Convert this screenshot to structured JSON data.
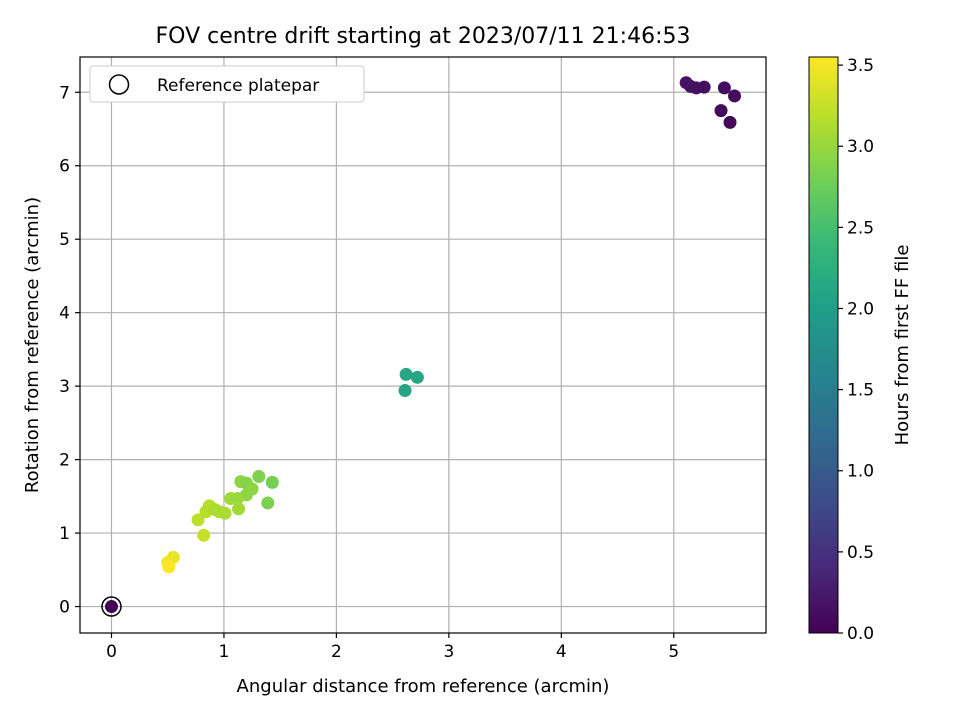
{
  "chart_data": {
    "type": "scatter",
    "title": "FOV centre drift starting at 2023/07/11 21:46:53",
    "xlabel": "Angular distance from reference (arcmin)",
    "ylabel": "Rotation from reference (arcmin)",
    "xlim": [
      -0.28,
      5.82
    ],
    "ylim": [
      -0.36,
      7.48
    ],
    "x_ticks": [
      0,
      1,
      2,
      3,
      4,
      5
    ],
    "y_ticks": [
      0,
      1,
      2,
      3,
      4,
      5,
      6,
      7
    ],
    "grid": true,
    "legend": {
      "placement": "upper-left",
      "entries": [
        {
          "label": "Reference platepar",
          "marker": "hollow-circle"
        }
      ]
    },
    "reference_point": {
      "x": 0,
      "y": 0
    },
    "colorbar": {
      "label": "Hours from first FF file",
      "colormap": "viridis",
      "range": [
        0.0,
        3.55
      ],
      "ticks": [
        0.0,
        0.5,
        1.0,
        1.5,
        2.0,
        2.5,
        3.0,
        3.5
      ]
    },
    "points": [
      {
        "x": 0.0,
        "y": 0.0,
        "c": 0.0
      },
      {
        "x": 5.11,
        "y": 7.13,
        "c": 0.18
      },
      {
        "x": 5.15,
        "y": 7.08,
        "c": 0.16
      },
      {
        "x": 5.2,
        "y": 7.06,
        "c": 0.15
      },
      {
        "x": 5.27,
        "y": 7.07,
        "c": 0.14
      },
      {
        "x": 5.45,
        "y": 7.06,
        "c": 0.12
      },
      {
        "x": 5.54,
        "y": 6.95,
        "c": 0.11
      },
      {
        "x": 5.42,
        "y": 6.75,
        "c": 0.09
      },
      {
        "x": 5.5,
        "y": 6.59,
        "c": 0.07
      },
      {
        "x": 2.62,
        "y": 3.16,
        "c": 2.15
      },
      {
        "x": 2.72,
        "y": 3.12,
        "c": 2.12
      },
      {
        "x": 2.61,
        "y": 2.94,
        "c": 2.1
      },
      {
        "x": 1.31,
        "y": 1.77,
        "c": 2.85
      },
      {
        "x": 1.43,
        "y": 1.69,
        "c": 2.8
      },
      {
        "x": 1.15,
        "y": 1.7,
        "c": 2.95
      },
      {
        "x": 1.2,
        "y": 1.68,
        "c": 2.9
      },
      {
        "x": 1.25,
        "y": 1.6,
        "c": 2.95
      },
      {
        "x": 1.2,
        "y": 1.52,
        "c": 2.95
      },
      {
        "x": 1.39,
        "y": 1.41,
        "c": 2.85
      },
      {
        "x": 1.06,
        "y": 1.47,
        "c": 3.05
      },
      {
        "x": 1.12,
        "y": 1.47,
        "c": 3.0
      },
      {
        "x": 1.13,
        "y": 1.33,
        "c": 3.05
      },
      {
        "x": 0.87,
        "y": 1.37,
        "c": 3.15
      },
      {
        "x": 0.84,
        "y": 1.29,
        "c": 3.15
      },
      {
        "x": 0.92,
        "y": 1.32,
        "c": 3.1
      },
      {
        "x": 0.96,
        "y": 1.29,
        "c": 3.1
      },
      {
        "x": 1.01,
        "y": 1.27,
        "c": 3.1
      },
      {
        "x": 0.77,
        "y": 1.18,
        "c": 3.2
      },
      {
        "x": 0.82,
        "y": 0.97,
        "c": 3.25
      },
      {
        "x": 0.5,
        "y": 0.6,
        "c": 3.5
      },
      {
        "x": 0.55,
        "y": 0.67,
        "c": 3.45
      },
      {
        "x": 0.51,
        "y": 0.54,
        "c": 3.55
      }
    ]
  },
  "colors": {
    "reference_ring": "#000000",
    "grid": "#b0b0b0",
    "axes": "#000000",
    "legend_border": "#cccccc"
  }
}
